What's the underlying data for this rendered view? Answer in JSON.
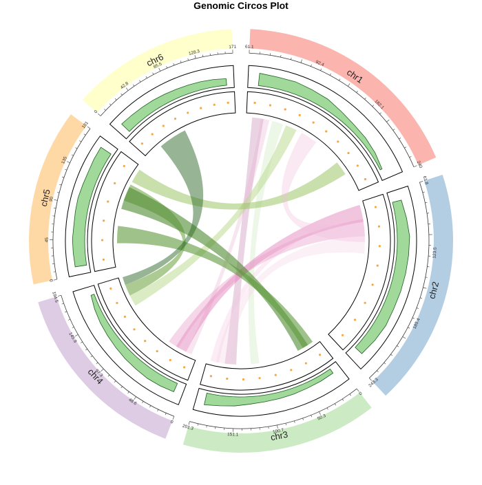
{
  "title": "Genomic Circos Plot",
  "chart_data": {
    "type": "circos",
    "title": "Genomic Circos Plot",
    "sectors": [
      {
        "name": "chr1",
        "length": 240,
        "color": "#FBB4AE",
        "ticks": [
          "61.1",
          "92.4",
          "182.1",
          "240"
        ]
      },
      {
        "name": "chr2",
        "length": 243,
        "color": "#B3CDE3",
        "ticks": [
          "61.8",
          "123.5",
          "185.4",
          "243.3"
        ]
      },
      {
        "name": "chr3",
        "length": 201,
        "color": "#CCEBC5",
        "ticks": [
          "0",
          "50.3",
          "100.7",
          "151.1",
          "201.3"
        ]
      },
      {
        "name": "chr4",
        "length": 195,
        "color": "#DECBE4",
        "ticks": [
          "0",
          "48.6",
          "97.3",
          "145.9",
          "194.5"
        ]
      },
      {
        "name": "chr5",
        "length": 181,
        "color": "#FED9A6",
        "ticks": [
          "0",
          "45",
          "90",
          "135",
          "181"
        ]
      },
      {
        "name": "chr6",
        "length": 171,
        "color": "#FFFFCC",
        "ticks": [
          "0",
          "42.8",
          "85.5",
          "128.3",
          "171"
        ]
      }
    ],
    "tracks": [
      {
        "type": "area",
        "color": "#A1D99B",
        "stroke": "#1B5E20",
        "values": {
          "chr1": [
            0.75,
            0.7,
            0.72,
            0.65,
            0.6,
            0.45,
            0.35,
            0.32,
            0.25,
            0.12
          ],
          "chr2": [
            0.55,
            0.65,
            0.75,
            0.72,
            0.7,
            0.68,
            0.66,
            0.7,
            0.64,
            0.55
          ],
          "chr3": [
            0.3,
            0.32,
            0.33,
            0.36,
            0.38,
            0.4,
            0.45,
            0.55,
            0.62,
            0.72
          ],
          "chr4": [
            0.55,
            0.6,
            0.62,
            0.58,
            0.55,
            0.5,
            0.45,
            0.4,
            0.32,
            0.2
          ],
          "chr5": [
            0.7,
            0.72,
            0.74,
            0.7,
            0.72,
            0.74,
            0.7,
            0.68,
            0.72,
            0.74
          ],
          "chr6": [
            0.65,
            0.62,
            0.6,
            0.58,
            0.55,
            0.52,
            0.5,
            0.48,
            0.45,
            0.4
          ]
        }
      },
      {
        "type": "points",
        "color": "#F4A742",
        "values": {
          "chr1": [
            0.5,
            0.5,
            0.5,
            0.5,
            0.5,
            0.5,
            0.5,
            0.5,
            0.5,
            0.5
          ],
          "chr2": [
            0.5,
            0.5,
            0.5,
            0.5,
            0.5,
            0.5,
            0.5,
            0.5
          ],
          "chr3": [
            0.5,
            0.5,
            0.5,
            0.5,
            0.5,
            0.5,
            0.5,
            0.5
          ],
          "chr4": [
            0.5,
            0.5,
            0.5,
            0.5,
            0.5,
            0.5,
            0.5,
            0.5
          ],
          "chr5": [
            0.5,
            0.5,
            0.5,
            0.5,
            0.5,
            0.5
          ],
          "chr6": [
            0.5,
            0.5,
            0.5,
            0.5,
            0.5,
            0.5,
            0.5,
            0.5
          ]
        }
      }
    ],
    "links": [
      {
        "from": [
          "chr1",
          10,
          30
        ],
        "to": [
          "chr3",
          150,
          170
        ],
        "color": "#D6A8C8",
        "opacity": 0.5
      },
      {
        "from": [
          "chr1",
          25,
          40
        ],
        "to": [
          "chr4",
          10,
          20
        ],
        "color": "#E8B4D4",
        "opacity": 0.35
      },
      {
        "from": [
          "chr1",
          45,
          65
        ],
        "to": [
          "chr3",
          110,
          125
        ],
        "color": "#DCEFD2",
        "opacity": 0.5
      },
      {
        "from": [
          "chr1",
          70,
          90
        ],
        "to": [
          "chr4",
          140,
          160
        ],
        "color": "#B8D98A",
        "opacity": 0.5
      },
      {
        "from": [
          "chr1",
          180,
          205
        ],
        "to": [
          "chr5",
          150,
          175
        ],
        "color": "#9CC76A",
        "opacity": 0.55
      },
      {
        "from": [
          "chr2",
          5,
          35
        ],
        "to": [
          "chr4",
          20,
          40
        ],
        "color": "#E07AB5",
        "opacity": 0.45
      },
      {
        "from": [
          "chr2",
          10,
          30
        ],
        "to": [
          "chr3",
          180,
          195
        ],
        "color": "#F3C8E2",
        "opacity": 0.35
      },
      {
        "from": [
          "chr2",
          30,
          60
        ],
        "to": [
          "chr4",
          35,
          55
        ],
        "color": "#E89CC9",
        "opacity": 0.4
      },
      {
        "from": [
          "chr2",
          60,
          90
        ],
        "to": [
          "chr3",
          160,
          185
        ],
        "color": "#F5D4E8",
        "opacity": 0.35
      },
      {
        "from": [
          "chr2",
          35,
          70
        ],
        "to": [
          "chr1",
          100,
          130
        ],
        "color": "#F0BEDC",
        "opacity": 0.35
      },
      {
        "from": [
          "chr4",
          160,
          180
        ],
        "to": [
          "chr5",
          115,
          145
        ],
        "color": "#74A84B",
        "opacity": 0.6
      },
      {
        "from": [
          "chr5",
          100,
          140
        ],
        "to": [
          "chr3",
          20,
          40
        ],
        "color": "#4E8A2E",
        "opacity": 0.6
      },
      {
        "from": [
          "chr5",
          40,
          70
        ],
        "to": [
          "chr3",
          10,
          30
        ],
        "color": "#5E9A3A",
        "opacity": 0.6
      },
      {
        "from": [
          "chr6",
          30,
          80
        ],
        "to": [
          "chr4",
          180,
          194
        ],
        "color": "#2F6A2A",
        "opacity": 0.5
      }
    ]
  }
}
